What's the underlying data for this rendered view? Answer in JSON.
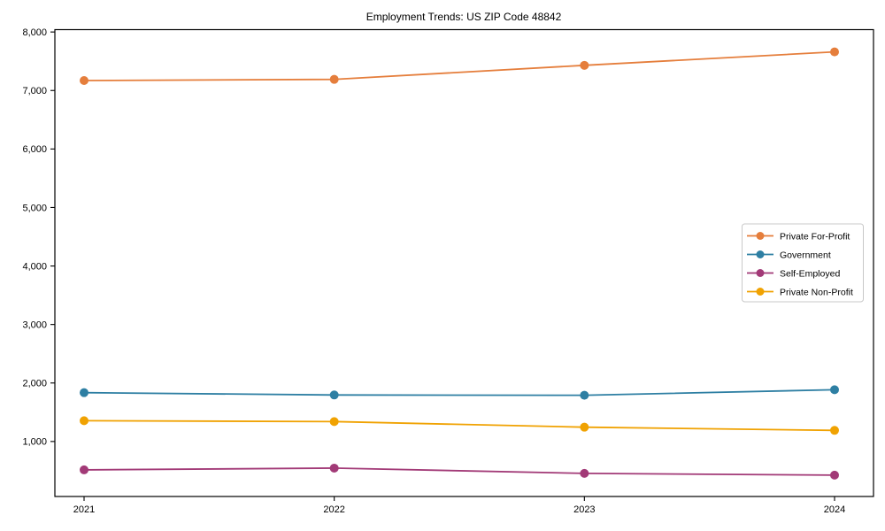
{
  "chart_data": {
    "type": "line",
    "title": "Employment Trends: US ZIP Code 48842",
    "xlabel": "",
    "ylabel": "",
    "categories": [
      "2021",
      "2022",
      "2023",
      "2024"
    ],
    "series": [
      {
        "name": "Private For-Profit",
        "color": "#e57e3c",
        "values": [
          7170,
          7190,
          7430,
          7660
        ]
      },
      {
        "name": "Government",
        "color": "#2e7fa3",
        "values": [
          1835,
          1795,
          1790,
          1885
        ]
      },
      {
        "name": "Self-Employed",
        "color": "#a23a77",
        "values": [
          515,
          545,
          455,
          425
        ]
      },
      {
        "name": "Private Non-Profit",
        "color": "#f0a202",
        "values": [
          1355,
          1340,
          1245,
          1190
        ]
      }
    ],
    "ylim": [
      60,
      8040
    ],
    "yticks": [
      1000,
      2000,
      3000,
      4000,
      5000,
      6000,
      7000,
      8000
    ],
    "ytick_labels": [
      "1,000",
      "2,000",
      "3,000",
      "4,000",
      "5,000",
      "6,000",
      "7,000",
      "8,000"
    ],
    "grid": false,
    "marker": "circle",
    "legend_position": "center right",
    "axis_color": "#000000",
    "legend_border_color": "#c8c8c8"
  }
}
